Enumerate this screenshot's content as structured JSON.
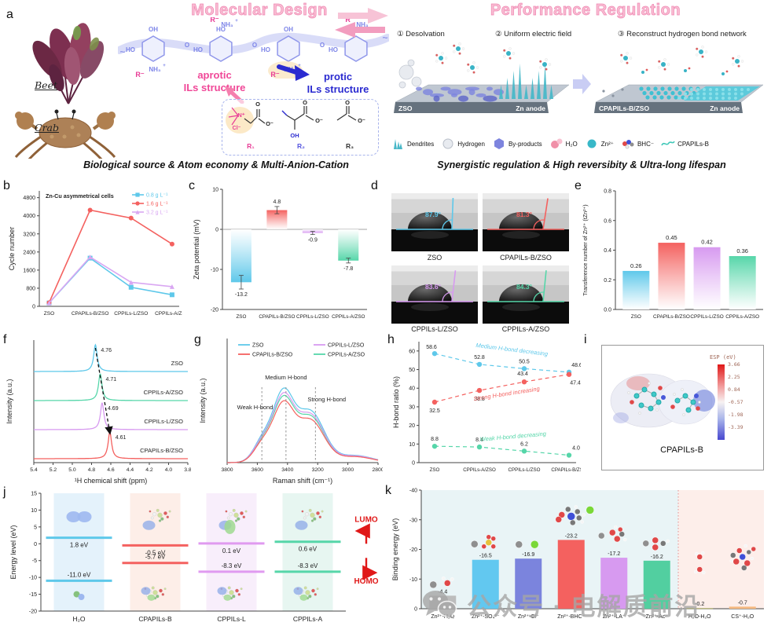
{
  "palette": {
    "blue": "#5ec8ea",
    "red": "#f4615f",
    "purple": "#d79af0",
    "green": "#56d6a9",
    "pink_title": "#f9bdd3",
    "accent_pink": "#e83c96",
    "accent_blue": "#2b2bd0"
  },
  "panel_labels": {
    "a": "a",
    "b": "b",
    "c": "c",
    "d": "d",
    "e": "e",
    "f": "f",
    "g": "g",
    "h": "h",
    "i": "i",
    "j": "j",
    "k": "k"
  },
  "panel_a": {
    "left": {
      "title": "Molecular Design",
      "beet": "Beet",
      "crab": "Crab",
      "aprotic_1": "aprotic",
      "aprotic_2": "ILs structure",
      "protic_1": "protic",
      "protic_2": "ILs structure",
      "chain_labels": {
        "oh": "OH",
        "ho": "HO",
        "nh3": "NH₃",
        "plus": "+",
        "o": "O",
        "r": "R⁻"
      },
      "molecule_labels": {
        "n": "N⁺",
        "cl": "Cl⁻",
        "o": "O",
        "o_minus": "O⁻",
        "oh": "OH",
        "r1": "R₁",
        "r2": "R₂",
        "r3": "R₃"
      },
      "caption": "Biological source & Atom economy & Multi-Anion-Cation"
    },
    "right": {
      "title": "Performance Regulation",
      "steps": [
        "① Desolvation",
        "② Uniform electric field",
        "③ Reconstruct hydrogen bond network"
      ],
      "scene1_left": "ZSO",
      "scene1_right": "Zn anode",
      "scene2_left": "CPAPILs-B/ZSO",
      "scene2_right": "Zn anode",
      "legend": [
        {
          "icon": "dendrites-icon",
          "label": "Dendrites"
        },
        {
          "icon": "hydrogen-icon",
          "label": "Hydrogen"
        },
        {
          "icon": "by-products-icon",
          "label": "By-products"
        },
        {
          "icon": "water-icon",
          "label": "H₂O"
        },
        {
          "icon": "zinc-ion-icon",
          "label": "Zn²⁺"
        },
        {
          "icon": "bhc-anion-icon",
          "label": "BHC⁻"
        },
        {
          "icon": "cpapils-b-icon",
          "label": "CPAPILs-B"
        }
      ],
      "caption": "Synergistic regulation & High reversibity & Ultra-long lifespan"
    }
  },
  "panel_d": {
    "tiles": [
      {
        "name": "ZSO",
        "angle": "87.9°",
        "color": "#5ec8ea"
      },
      {
        "name": "CPAPILs-B/ZSO",
        "angle": "81.3°",
        "color": "#f4615f"
      },
      {
        "name": "CPPILs-L/ZSO",
        "angle": "83.6°",
        "color": "#d79af0"
      },
      {
        "name": "CPPILs-A/ZSO",
        "angle": "84.3°",
        "color": "#56d6a9"
      }
    ]
  },
  "panel_i": {
    "colorbar_title": "ESP (eV)",
    "colorbar_ticks": [
      "3.66",
      "2.25",
      "0.84",
      "-0.57",
      "-1.98",
      "-3.39"
    ],
    "caption": "CPAPILs-B"
  },
  "watermark": {
    "text": "公众号 · 电解质前沿"
  },
  "chart_data": [
    {
      "panel": "b",
      "type": "line",
      "title": "Zn-Cu asymmetrical cells",
      "ylabel": "Cycle number",
      "ylim": [
        0,
        5100
      ],
      "yticks": [
        0,
        800,
        1600,
        2400,
        3200,
        4000,
        4800
      ],
      "categories": [
        "ZSO",
        "CPAPILs-B/ZSO",
        "CPPILs-L/ZSO",
        "CPPILs-A/ZSO"
      ],
      "series": [
        {
          "name": "0.8 g L⁻¹",
          "color": "#5ec8ea",
          "marker": "square",
          "values": [
            150,
            2130,
            840,
            510
          ]
        },
        {
          "name": "1.6 g L⁻¹",
          "color": "#f4615f",
          "marker": "circle",
          "values": [
            160,
            4250,
            3900,
            2750
          ]
        },
        {
          "name": "3.2 g L⁻¹",
          "color": "#d9a7f2",
          "marker": "triangle",
          "values": [
            150,
            2180,
            1060,
            870
          ]
        }
      ]
    },
    {
      "panel": "c",
      "type": "bar",
      "ylabel": "Zeta potential (mV)",
      "ylim": [
        -20,
        10
      ],
      "yticks": [
        10,
        0,
        -10,
        -20
      ],
      "categories": [
        "ZSO",
        "CPAPILs-B/ZSO",
        "CPPILs-L/ZSO",
        "CPPILs-A/ZSO"
      ],
      "values": [
        -13.2,
        4.8,
        -0.9,
        -7.8
      ],
      "errors": [
        1.7,
        0.9,
        0.4,
        0.6
      ],
      "colors": [
        "#5ec8ea",
        "#f4615f",
        "#d79af0",
        "#56d6a9"
      ]
    },
    {
      "panel": "e",
      "type": "bar",
      "ylabel": "Transference number of Zn²⁺ (tZn²⁺)",
      "ylim": [
        0,
        0.8
      ],
      "yticks": [
        0,
        0.2,
        0.4,
        0.6,
        0.8
      ],
      "categories": [
        "ZSO",
        "CPAPILs-B/ZSO",
        "CPPILs-L/ZSO",
        "CPPILs-A/ZSO"
      ],
      "values": [
        0.26,
        0.45,
        0.42,
        0.36
      ],
      "colors": [
        "#5ec8ea",
        "#f4615f",
        "#d79af0",
        "#56d6a9"
      ]
    },
    {
      "panel": "f",
      "type": "line",
      "xlabel": "¹H chemical shift (ppm)",
      "ylabel": "Intensity (a.u.)",
      "xlim": [
        5.4,
        3.8
      ],
      "xticks": [
        5.4,
        5.2,
        5.0,
        4.8,
        4.6,
        4.4,
        4.2,
        4.0,
        3.8
      ],
      "curves": [
        {
          "name": "ZSO",
          "peak": 4.76,
          "color": "#5ec8ea"
        },
        {
          "name": "CPPILs-A/ZSO",
          "peak": 4.71,
          "color": "#56d6a9"
        },
        {
          "name": "CPPILs-L/ZSO",
          "peak": 4.69,
          "color": "#d79af0"
        },
        {
          "name": "CPAPILs-B/ZSO",
          "peak": 4.61,
          "color": "#f4615f"
        }
      ]
    },
    {
      "panel": "g",
      "type": "line",
      "xlabel": "Raman shift (cm⁻¹)",
      "ylabel": "Intensity (a.u.)",
      "xlim": [
        3800,
        2800
      ],
      "xticks": [
        3800,
        3600,
        3400,
        3200,
        3000,
        2800
      ],
      "series": [
        {
          "name": "ZSO",
          "color": "#5ec8ea",
          "scale": 1.0
        },
        {
          "name": "CPAPILs-B/ZSO",
          "color": "#f4615f",
          "scale": 0.83
        },
        {
          "name": "CPPILs-L/ZSO",
          "color": "#d79af0",
          "scale": 0.94
        },
        {
          "name": "CPPILs-A/ZSO",
          "color": "#56d6a9",
          "scale": 0.9
        }
      ],
      "annotations": [
        {
          "text": "Weak H-bond",
          "x": 3570
        },
        {
          "text": "Medium H-bond",
          "x": 3410
        },
        {
          "text": "Strong H-bond",
          "x": 3215
        }
      ]
    },
    {
      "panel": "h",
      "type": "scatter",
      "ylabel": "H-bond ratio (%)",
      "ylim": [
        0,
        65
      ],
      "yticks": [
        0,
        10,
        20,
        30,
        40,
        50,
        60
      ],
      "categories": [
        "ZSO",
        "CPPILs-A/ZSO",
        "CPPILs-L/ZSO",
        "CPAPILs-B/ZSO"
      ],
      "series": [
        {
          "name": "Medium H-bond decreasing",
          "color": "#5ec8ea",
          "values": [
            58.6,
            52.8,
            50.5,
            48.6
          ]
        },
        {
          "name": "Strong H-bond increasing",
          "color": "#f4615f",
          "values": [
            32.5,
            38.8,
            43.4,
            47.4
          ]
        },
        {
          "name": "Weak H-bond decreasing",
          "color": "#56d6a9",
          "values": [
            8.8,
            8.4,
            6.2,
            4.0
          ]
        }
      ]
    },
    {
      "panel": "j",
      "type": "energy-level",
      "ylabel": "Energy level (eV)",
      "ylim": [
        -20,
        15
      ],
      "yticks": [
        15,
        10,
        5,
        0,
        -5,
        -10,
        -15,
        -20
      ],
      "annotations": {
        "lumo": "LUMO",
        "homo": "HOMO"
      },
      "groups": [
        {
          "name": "H₂O",
          "color": "#5ec8ea",
          "bg": "#e4f2fb",
          "lumo": 1.8,
          "homo": -11.0,
          "lumo_label": "1.8 eV",
          "homo_label": "-11.0 eV"
        },
        {
          "name": "CPAPILs-B",
          "color": "#f4615f",
          "bg": "#fdeee8",
          "lumo": -0.5,
          "homo": -5.7,
          "lumo_label": "-0.5 eV",
          "homo_label": "-5.7 eV"
        },
        {
          "name": "CPPILs-L",
          "color": "#e09af0",
          "bg": "#f8eefb",
          "lumo": 0.1,
          "homo": -8.3,
          "lumo_label": "0.1 eV",
          "homo_label": "-8.3 eV"
        },
        {
          "name": "CPPILs-A",
          "color": "#56d6a9",
          "bg": "#e7f6f1",
          "lumo": 0.6,
          "homo": -8.3,
          "lumo_label": "0.6 eV",
          "homo_label": "-8.3 eV"
        }
      ]
    },
    {
      "panel": "k",
      "type": "bar",
      "ylabel": "Binding energy (eV)",
      "ylim": [
        0,
        -40
      ],
      "yticks": [
        0,
        -10,
        -20,
        -30,
        -40
      ],
      "categories": [
        "Zn²⁺-H₂O",
        "Zn²⁺-SO₄²⁻",
        "Zn²⁺-Cl⁻",
        "Zn²⁺-BHC⁻",
        "Zn²⁺-LA⁻",
        "Zn²⁺-Ac⁻",
        "H₂O-H₂O",
        "CS⁺-H₂O"
      ],
      "values": [
        -4.4,
        -16.5,
        -16.9,
        -23.2,
        -17.2,
        -16.2,
        -0.2,
        -0.7
      ],
      "colors": [
        "#bcbcbc",
        "#62c8f0",
        "#7b84dd",
        "#f4615f",
        "#d79af0",
        "#52cfa0",
        "#a8a860",
        "#f5b880"
      ],
      "regions": [
        {
          "from": 0,
          "to": 6,
          "bg": "#e9f4f6"
        },
        {
          "from": 6,
          "to": 8,
          "bg": "#fdeeea"
        }
      ]
    }
  ]
}
